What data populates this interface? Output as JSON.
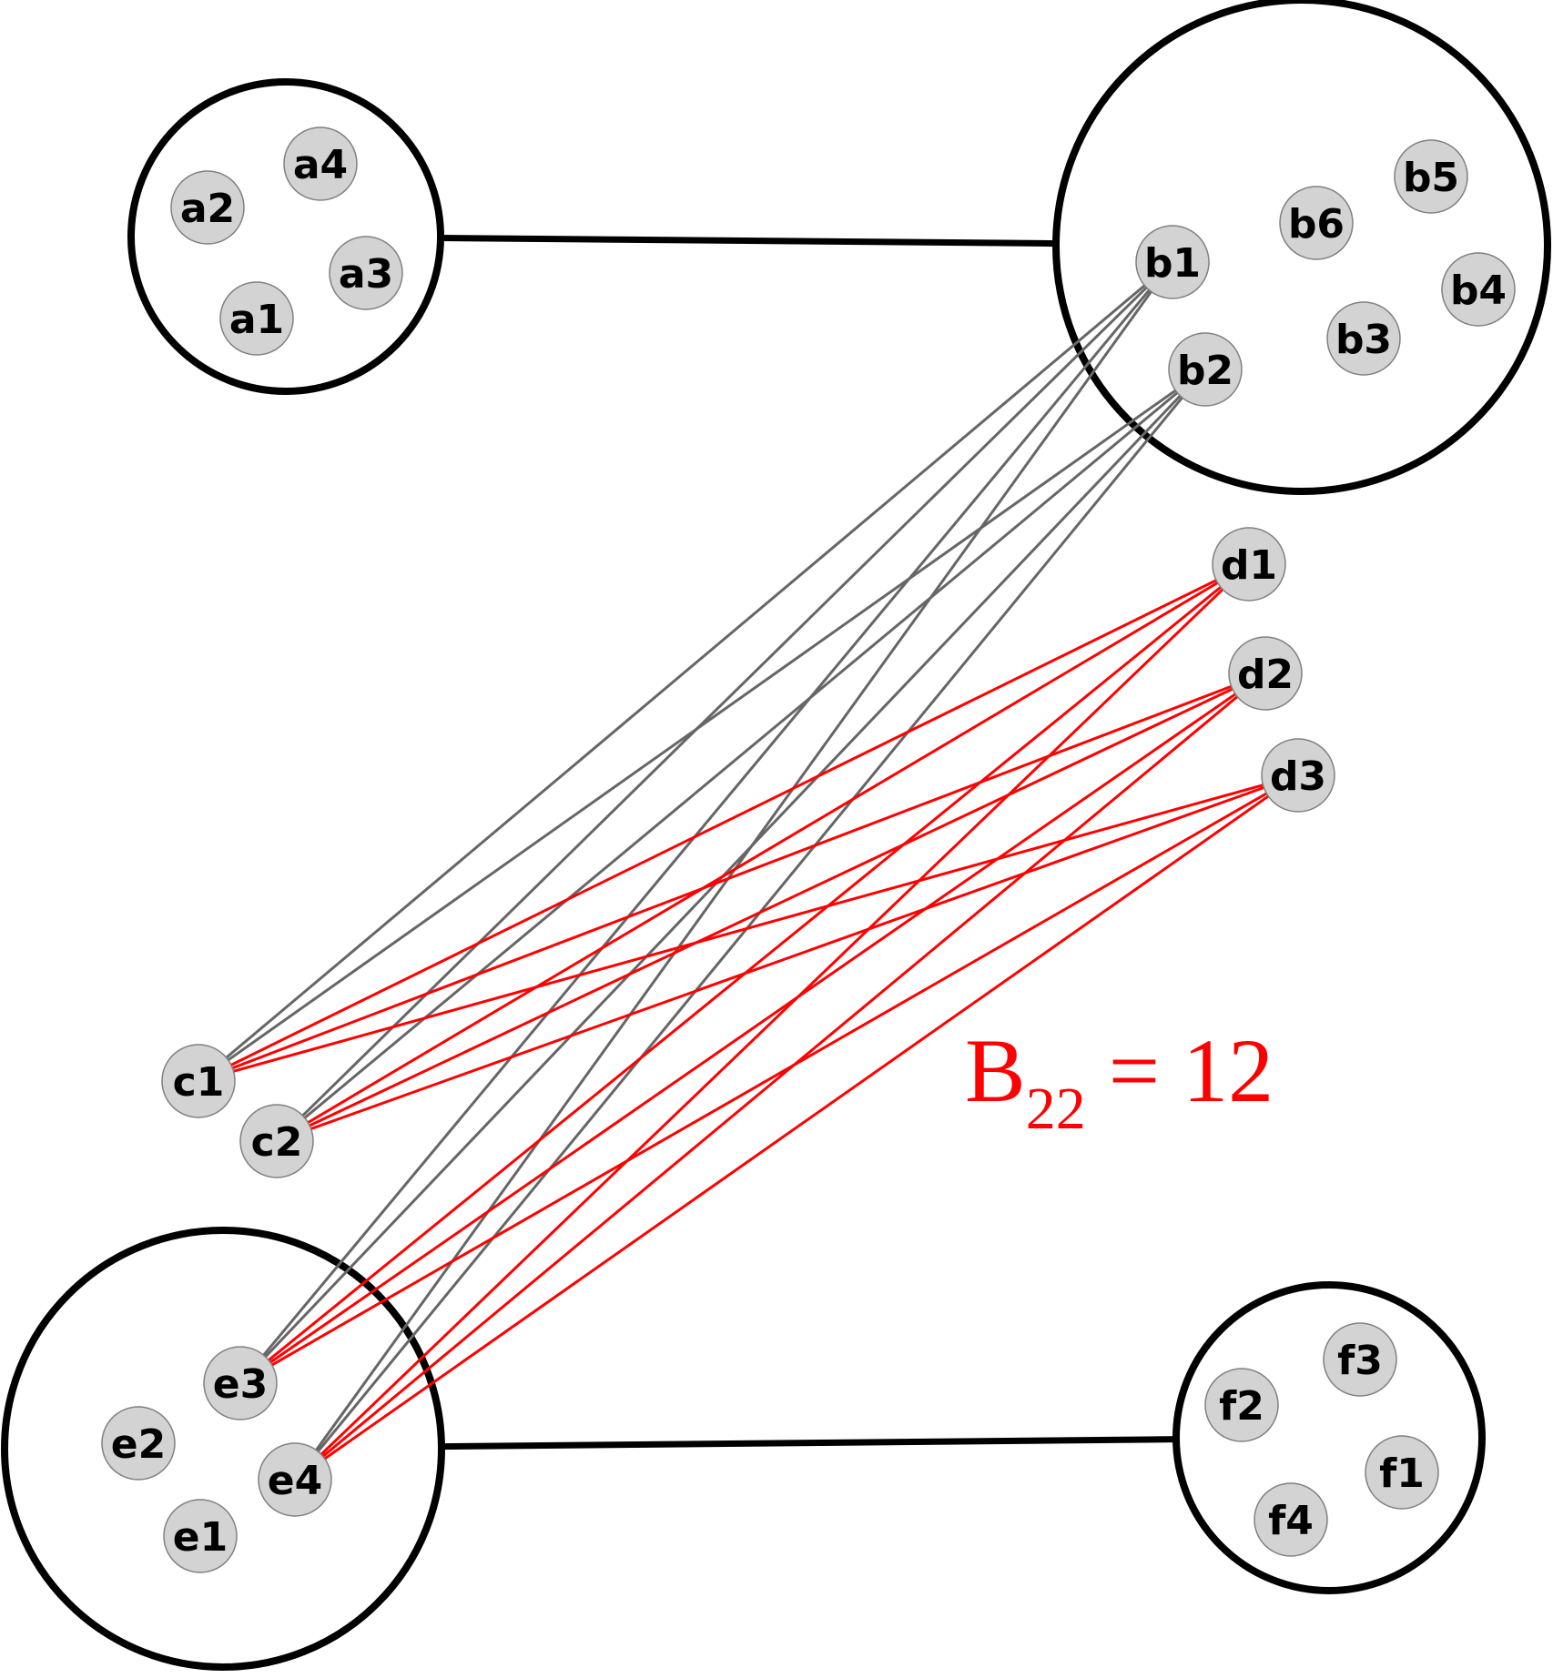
{
  "colors": {
    "background": "#ffffff",
    "cluster_outline": "#000000",
    "edge_gray": "#666666",
    "edge_red": "#ff0000",
    "node_fill": "#d3d3d3",
    "node_stroke": "#808080",
    "node_text": "#000000",
    "annotation": "#ff0000"
  },
  "annotation": {
    "main": "B",
    "subscript": "22",
    "rest": " = 12"
  },
  "clusters": [
    {
      "id": "A",
      "nodes": [
        "a1",
        "a2",
        "a3",
        "a4"
      ]
    },
    {
      "id": "B",
      "nodes": [
        "b1",
        "b2",
        "b3",
        "b4",
        "b5",
        "b6"
      ]
    },
    {
      "id": "E",
      "nodes": [
        "e1",
        "e2",
        "e3",
        "e4"
      ]
    },
    {
      "id": "F",
      "nodes": [
        "f1",
        "f2",
        "f3",
        "f4"
      ]
    }
  ],
  "cluster_links": [
    [
      "A",
      "B"
    ],
    [
      "E",
      "F"
    ]
  ],
  "nodes": [
    "a1",
    "a2",
    "a3",
    "a4",
    "b1",
    "b2",
    "b3",
    "b4",
    "b5",
    "b6",
    "c1",
    "c2",
    "d1",
    "d2",
    "d3",
    "e1",
    "e2",
    "e3",
    "e4",
    "f1",
    "f2",
    "f3",
    "f4"
  ],
  "edges_gray": [
    [
      "b1",
      "c1"
    ],
    [
      "b1",
      "c2"
    ],
    [
      "b1",
      "e3"
    ],
    [
      "b1",
      "e4"
    ],
    [
      "b2",
      "c1"
    ],
    [
      "b2",
      "c2"
    ],
    [
      "b2",
      "e3"
    ],
    [
      "b2",
      "e4"
    ]
  ],
  "edges_red": [
    [
      "d1",
      "c1"
    ],
    [
      "d1",
      "c2"
    ],
    [
      "d1",
      "e3"
    ],
    [
      "d1",
      "e4"
    ],
    [
      "d2",
      "c1"
    ],
    [
      "d2",
      "c2"
    ],
    [
      "d2",
      "e3"
    ],
    [
      "d2",
      "e4"
    ],
    [
      "d3",
      "c1"
    ],
    [
      "d3",
      "c2"
    ],
    [
      "d3",
      "e3"
    ],
    [
      "d3",
      "e4"
    ]
  ]
}
